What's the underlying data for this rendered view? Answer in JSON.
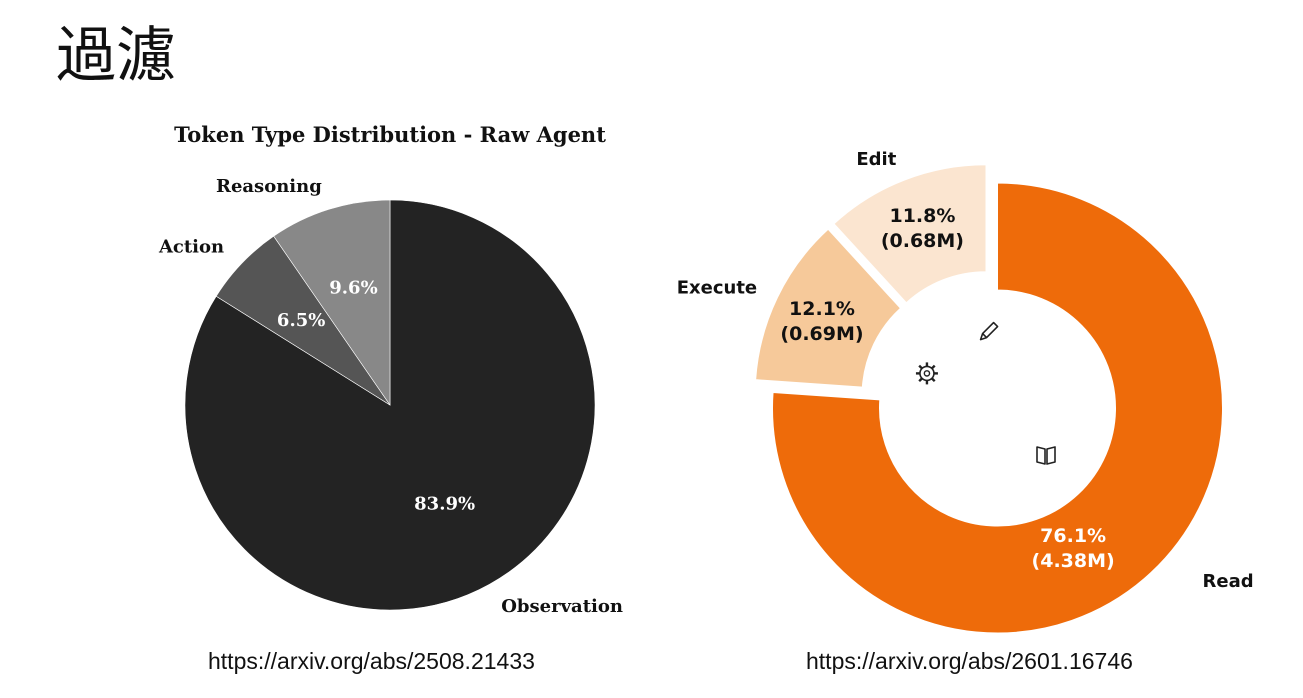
{
  "slide": {
    "title": "過濾",
    "links": [
      "https://arxiv.org/abs/2508.21433",
      "https://arxiv.org/abs/2601.16746"
    ]
  },
  "chart_data": [
    {
      "type": "pie",
      "title": "Token Type Distribution - Raw Agent",
      "slices": [
        {
          "label": "Observation",
          "value": 83.9,
          "text": "83.9%",
          "color": "#232323"
        },
        {
          "label": "Action",
          "value": 6.5,
          "text": "6.5%",
          "color": "#555555"
        },
        {
          "label": "Reasoning",
          "value": 9.6,
          "text": "9.6%",
          "color": "#888888"
        }
      ]
    },
    {
      "type": "pie",
      "title": "",
      "donut": true,
      "slices": [
        {
          "label": "Read",
          "value": 76.1,
          "text": "76.1%",
          "subtext": "(4.38M)",
          "color": "#ee6b0a",
          "icon": "book-icon"
        },
        {
          "label": "Execute",
          "value": 12.1,
          "text": "12.1%",
          "subtext": "(0.69M)",
          "color": "#f6c99a",
          "icon": "gear-icon"
        },
        {
          "label": "Edit",
          "value": 11.8,
          "text": "11.8%",
          "subtext": "(0.68M)",
          "color": "#fbe5d0",
          "icon": "pencil-icon"
        }
      ]
    }
  ]
}
